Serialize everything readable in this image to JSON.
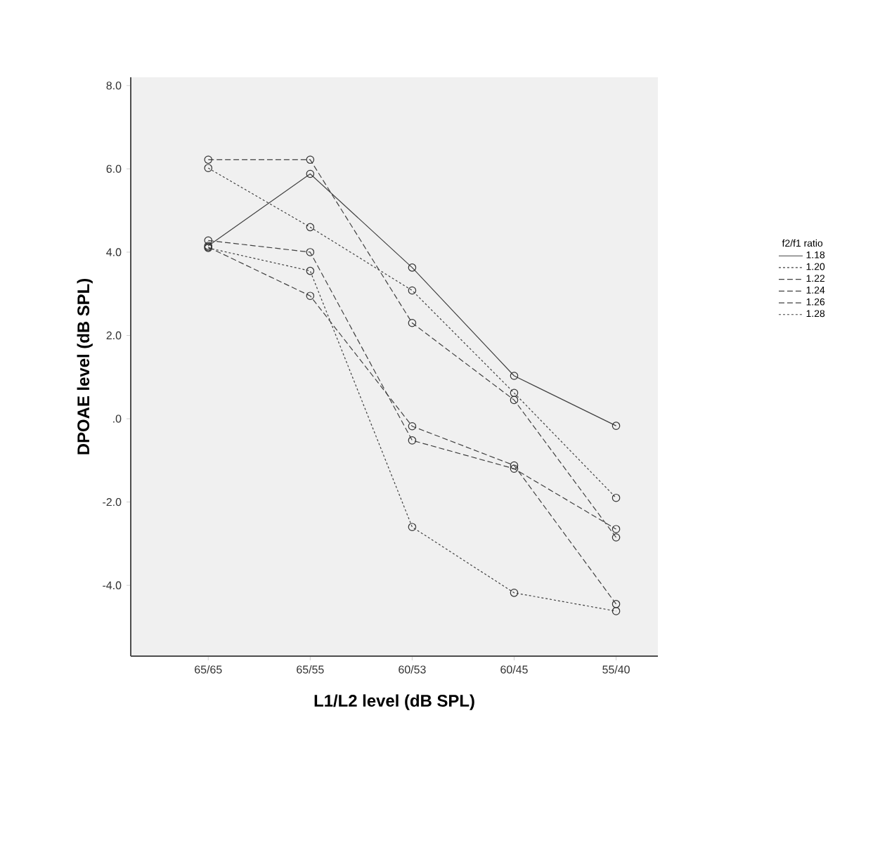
{
  "chart_data": {
    "type": "line",
    "xlabel": "L1/L2 level (dB SPL)",
    "ylabel": "DPOAE level (dB SPL)",
    "legend_title": "f2/f1 ratio",
    "categories": [
      "65/65",
      "65/55",
      "60/53",
      "60/45",
      "55/40"
    ],
    "ylim": [
      -5.7,
      8.2
    ],
    "yticks": [
      {
        "value": -4,
        "label": "-4.0"
      },
      {
        "value": -2,
        "label": "-2.0"
      },
      {
        "value": 0,
        "label": ".0"
      },
      {
        "value": 2,
        "label": "2.0"
      },
      {
        "value": 4,
        "label": "4.0"
      },
      {
        "value": 6,
        "label": "6.0"
      },
      {
        "value": 8,
        "label": "8.0"
      }
    ],
    "marker": "circle",
    "grid": false,
    "legend": "right",
    "series": [
      {
        "name": "1.18",
        "color": "#404040",
        "line_style": "solid",
        "values": [
          4.15,
          5.88,
          3.63,
          1.03,
          -0.17
        ]
      },
      {
        "name": "1.20",
        "color": "#404040",
        "line_style": "dotted",
        "values": [
          6.02,
          4.6,
          3.08,
          0.62,
          -1.9
        ]
      },
      {
        "name": "1.22",
        "color": "#404040",
        "line_style": "dashed",
        "values": [
          6.22,
          6.22,
          2.3,
          0.45,
          -2.85
        ]
      },
      {
        "name": "1.24",
        "color": "#404040",
        "line_style": "dashed",
        "values": [
          4.28,
          4.0,
          -0.52,
          -1.2,
          -2.65
        ]
      },
      {
        "name": "1.26",
        "color": "#404040",
        "line_style": "dashed",
        "values": [
          4.12,
          2.95,
          -0.18,
          -1.12,
          -4.45
        ]
      },
      {
        "name": "1.28",
        "color": "#404040",
        "line_style": "dotted",
        "values": [
          4.1,
          3.55,
          -2.6,
          -4.18,
          -4.62
        ]
      }
    ]
  }
}
